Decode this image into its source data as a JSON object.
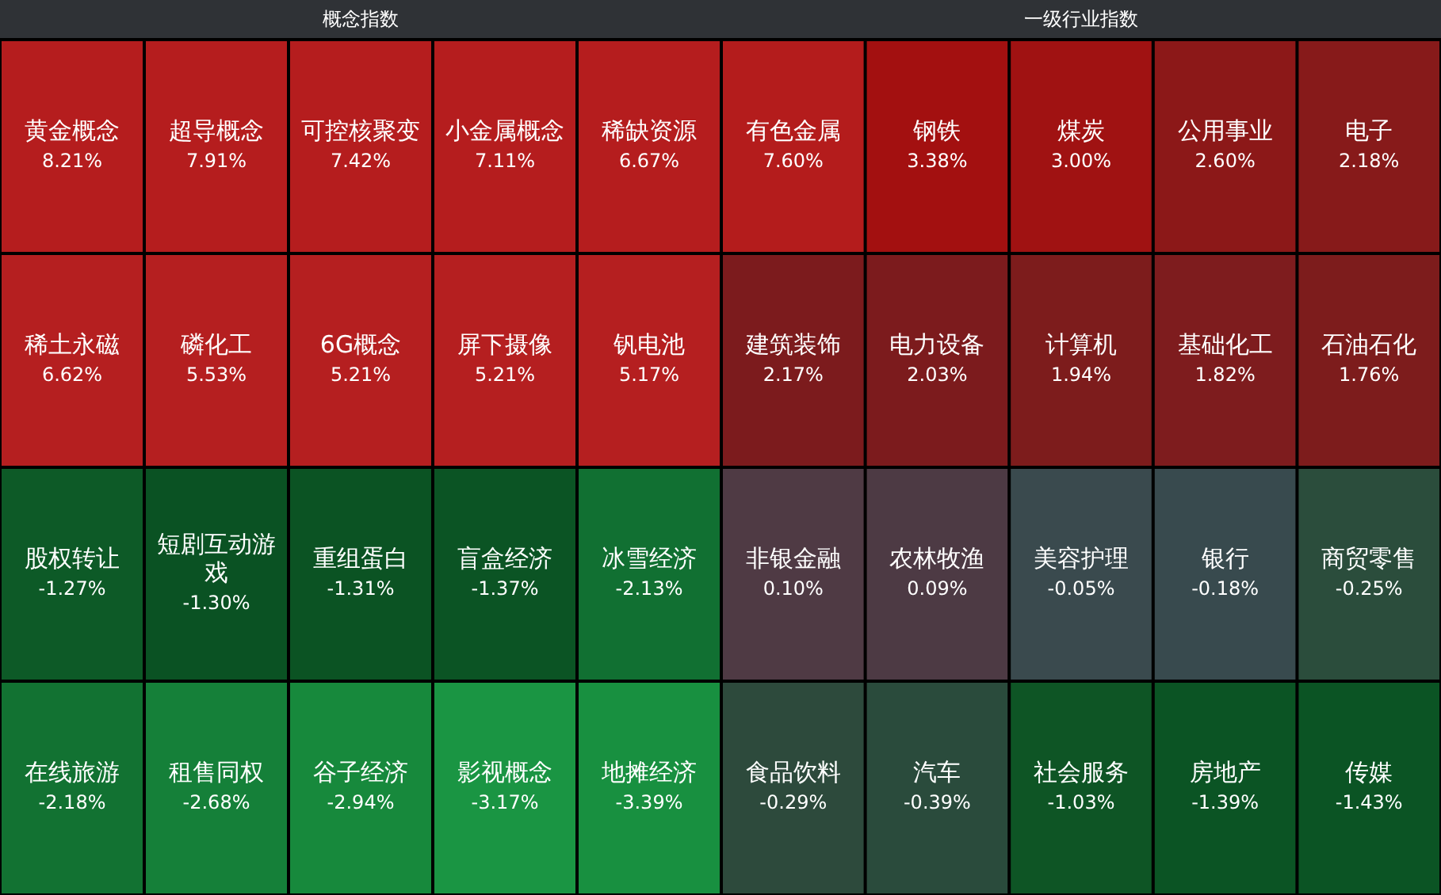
{
  "chart_data": [
    {
      "type": "other",
      "title": "概念指数",
      "categories": [
        "黄金概念",
        "超导概念",
        "可控核聚变",
        "小金属概念",
        "稀缺资源",
        "稀土永磁",
        "磷化工",
        "6G概念",
        "屏下摄像",
        "钒电池",
        "股权转让",
        "短剧互动游戏",
        "重组蛋白",
        "盲盒经济",
        "冰雪经济",
        "在线旅游",
        "租售同权",
        "谷子经济",
        "影视概念",
        "地摊经济"
      ],
      "values": [
        8.21,
        7.91,
        7.42,
        7.11,
        6.67,
        6.62,
        5.53,
        5.21,
        5.21,
        5.17,
        -1.27,
        -1.3,
        -1.31,
        -1.37,
        -2.13,
        -2.18,
        -2.68,
        -2.94,
        -3.17,
        -3.39
      ],
      "value_labels": [
        "8.21%",
        "7.91%",
        "7.42%",
        "7.11%",
        "6.67%",
        "6.62%",
        "5.53%",
        "5.21%",
        "5.21%",
        "5.17%",
        "-1.27%",
        "-1.30%",
        "-1.31%",
        "-1.37%",
        "-2.13%",
        "-2.18%",
        "-2.68%",
        "-2.94%",
        "-3.17%",
        "-3.39%"
      ],
      "colors": [
        "#b51d1e",
        "#b51d1e",
        "#b51d1e",
        "#b51d1e",
        "#b51d1e",
        "#b51f20",
        "#b51f20",
        "#b51f20",
        "#b51f20",
        "#b51f20",
        "#0d5a27",
        "#0a5223",
        "#0b5323",
        "#0b5424",
        "#117032",
        "#127232",
        "#158039",
        "#17893c",
        "#1a9543",
        "#189040"
      ]
    },
    {
      "type": "other",
      "title": "一级行业指数",
      "categories": [
        "有色金属",
        "钢铁",
        "煤炭",
        "公用事业",
        "电子",
        "建筑装饰",
        "电力设备",
        "计算机",
        "基础化工",
        "石油石化",
        "非银金融",
        "农林牧渔",
        "美容护理",
        "银行",
        "商贸零售",
        "食品饮料",
        "汽车",
        "社会服务",
        "房地产",
        "传媒"
      ],
      "values": [
        7.6,
        3.38,
        3.0,
        2.6,
        2.18,
        2.17,
        2.03,
        1.94,
        1.82,
        1.76,
        0.1,
        0.09,
        -0.05,
        -0.18,
        -0.25,
        -0.29,
        -0.39,
        -1.03,
        -1.39,
        -1.43
      ],
      "value_labels": [
        "7.60%",
        "3.38%",
        "3.00%",
        "2.60%",
        "2.18%",
        "2.17%",
        "2.03%",
        "1.94%",
        "1.82%",
        "1.76%",
        "0.10%",
        "0.09%",
        "-0.05%",
        "-0.18%",
        "-0.25%",
        "-0.29%",
        "-0.39%",
        "-1.03%",
        "-1.39%",
        "-1.43%"
      ],
      "colors": [
        "#b41c1c",
        "#a31010",
        "#a01212",
        "#8c1818",
        "#871a1a",
        "#7c1b1d",
        "#7c1b1d",
        "#7d1c1c",
        "#7e1c1e",
        "#7d1c1c",
        "#4f3a44",
        "#4d3a44",
        "#3a4a4e",
        "#384a4e",
        "#2b4d3c",
        "#2d4a3c",
        "#2a4b3c",
        "#0e5525",
        "#0b5424",
        "#0b5424"
      ]
    }
  ]
}
